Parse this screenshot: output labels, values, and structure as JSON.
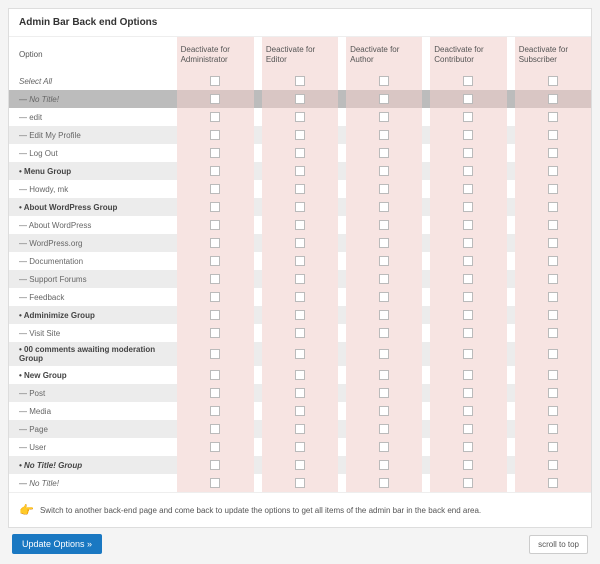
{
  "panel": {
    "title": "Admin Bar Back end Options",
    "hint": "Switch to another back-end page and come back to update the options to get all items of the admin bar in the back end area.",
    "update_button": "Update Options »",
    "scroll_top": "scroll to top"
  },
  "headers": {
    "option": "Option",
    "roles": [
      "Deactivate for Administrator",
      "Deactivate for Editor",
      "Deactivate for Author",
      "Deactivate for Contributor",
      "Deactivate for Subscriber"
    ]
  },
  "rows": [
    {
      "label": "Select All",
      "style": "ital",
      "alt": false
    },
    {
      "label": "— No Title!",
      "style": "ital",
      "alt": true,
      "selected": true
    },
    {
      "label": "— edit",
      "style": "",
      "alt": false
    },
    {
      "label": "— Edit My Profile",
      "style": "",
      "alt": true
    },
    {
      "label": "— Log Out",
      "style": "",
      "alt": false
    },
    {
      "label": "• Menu Group",
      "style": "bold",
      "alt": true
    },
    {
      "label": "— Howdy, mk",
      "style": "",
      "alt": false
    },
    {
      "label": "• About WordPress Group",
      "style": "bold",
      "alt": true
    },
    {
      "label": "— About WordPress",
      "style": "",
      "alt": false
    },
    {
      "label": "— WordPress.org",
      "style": "",
      "alt": true
    },
    {
      "label": "— Documentation",
      "style": "",
      "alt": false
    },
    {
      "label": "— Support Forums",
      "style": "",
      "alt": true
    },
    {
      "label": "— Feedback",
      "style": "",
      "alt": false
    },
    {
      "label": "• Adminimize Group",
      "style": "bold",
      "alt": true
    },
    {
      "label": "— Visit Site",
      "style": "",
      "alt": false
    },
    {
      "label": "• 00 comments awaiting moderation Group",
      "style": "bold",
      "alt": true
    },
    {
      "label": "• New Group",
      "style": "bold",
      "alt": false
    },
    {
      "label": "— Post",
      "style": "",
      "alt": true
    },
    {
      "label": "— Media",
      "style": "",
      "alt": false
    },
    {
      "label": "— Page",
      "style": "",
      "alt": true
    },
    {
      "label": "— User",
      "style": "",
      "alt": false
    },
    {
      "label": "• No Title! Group",
      "style": "bold ital",
      "alt": true
    },
    {
      "label": "— No Title!",
      "style": "ital",
      "alt": false
    }
  ]
}
